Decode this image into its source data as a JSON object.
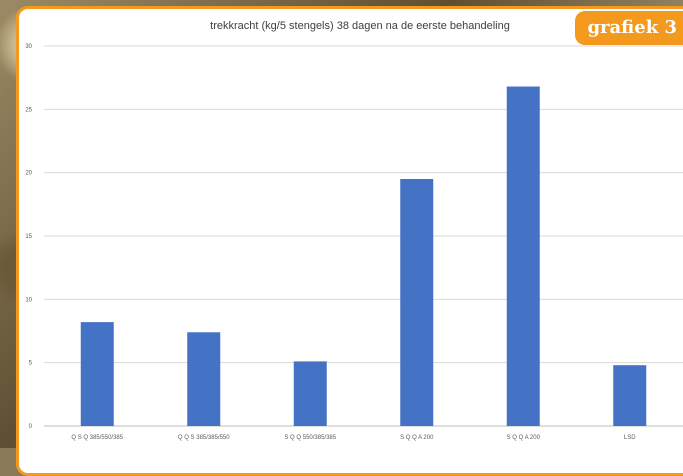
{
  "badge": "grafiek 3",
  "chart_data": {
    "type": "bar",
    "title": "trekkracht (kg/5 stengels) 38 dagen na de eerste behandeling",
    "categories": [
      "Q S Q 385/550/385",
      "Q Q S 385/385/550",
      "S Q Q 550/385/385",
      "S Q Q A 200",
      "S Q Q A 200",
      "LSD"
    ],
    "values": [
      8.2,
      7.4,
      5.1,
      19.5,
      26.8,
      4.8
    ],
    "ylim": [
      0,
      30
    ],
    "yticks": [
      0,
      5,
      10,
      15,
      20,
      25,
      30
    ],
    "grid": true,
    "colors": {
      "bar": "#4472c4",
      "accent": "#f39a1e"
    }
  }
}
